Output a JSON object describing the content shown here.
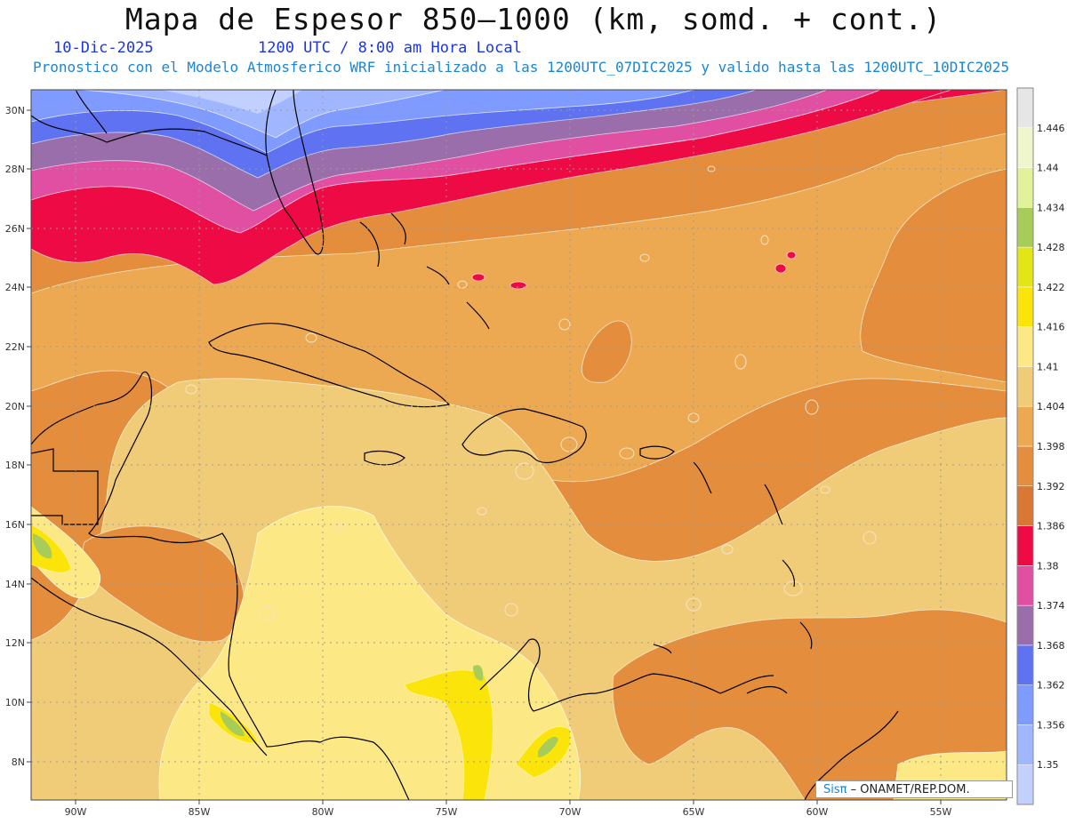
{
  "header": {
    "title": "Mapa de Espesor 850–1000 (km, somd. + cont.)",
    "date": "10-Dic-2025",
    "time": "1200 UTC / 8:00 am Hora Local",
    "forecast_note": "Pronostico con el Modelo Atmosferico WRF inicializado a las 1200UTC_07DIC2025 y valido hasta las  1200UTC_10DIC2025"
  },
  "axes": {
    "lat_labels": [
      "30N",
      "28N",
      "26N",
      "24N",
      "22N",
      "20N",
      "18N",
      "16N",
      "14N",
      "12N",
      "10N",
      "8N"
    ],
    "lon_labels": [
      "90W",
      "85W",
      "80W",
      "75W",
      "70W",
      "65W",
      "60W",
      "55W"
    ]
  },
  "colorbar": {
    "levels": [
      "1.35",
      "1.356",
      "1.362",
      "1.368",
      "1.374",
      "1.38",
      "1.386",
      "1.392",
      "1.398",
      "1.404",
      "1.41",
      "1.416",
      "1.422",
      "1.428",
      "1.434",
      "1.44",
      "1.446"
    ],
    "colors": [
      "#c2d0ff",
      "#a0b6ff",
      "#7f9bff",
      "#5f72f2",
      "#9a6eaa",
      "#e04fa2",
      "#ee0a44",
      "#d97834",
      "#e38d3d",
      "#eda852",
      "#f1cc78",
      "#fde886",
      "#fbe40a",
      "#e2e516",
      "#a7cc5a",
      "#e2f29a",
      "#f0f6cc",
      "#e6e6e6"
    ]
  },
  "credit": {
    "brand": "Sisπ",
    "org": "– ONAMET/REP.DOM."
  }
}
